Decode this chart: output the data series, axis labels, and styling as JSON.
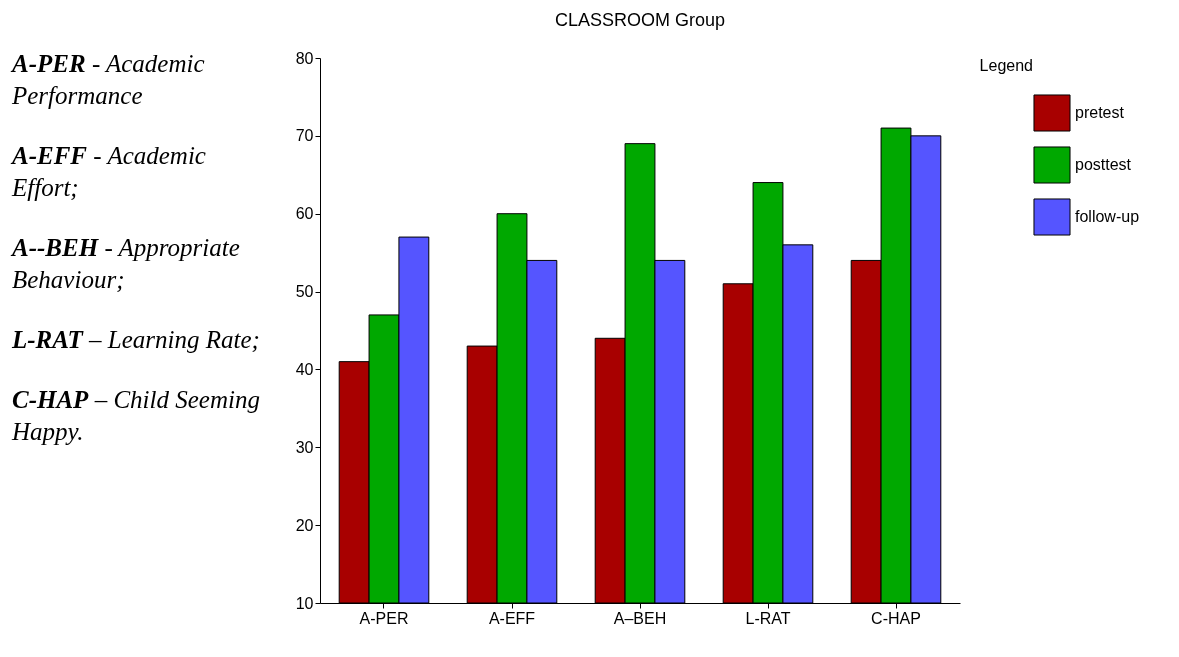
{
  "chart_data": {
    "type": "bar",
    "title": "CLASSROOM Group",
    "legend_title": "Legend",
    "legend": "right",
    "categories": [
      "A-PER",
      "A-EFF",
      "A–BEH",
      "L-RAT",
      "C-HAP"
    ],
    "series": [
      {
        "name": "pretest",
        "color": "#a80000",
        "values": [
          41,
          43,
          44,
          51,
          54
        ]
      },
      {
        "name": "posttest",
        "color": "#00a800",
        "values": [
          47,
          60,
          69,
          64,
          71
        ]
      },
      {
        "name": "follow-up",
        "color": "#5555ff",
        "values": [
          57,
          54,
          54,
          56,
          70
        ]
      }
    ],
    "ylim": [
      10,
      80
    ],
    "yticks": [
      10,
      20,
      30,
      40,
      50,
      60,
      70,
      80
    ],
    "grid": false,
    "annotations": [
      "A-PER - Academic Performance",
      "A-EFF - Academic Effort;",
      "A--BEH - Appropriate Behaviour;",
      "L-RAT – Learning Rate;",
      "C-HAP – Child Seeming Happy."
    ]
  }
}
